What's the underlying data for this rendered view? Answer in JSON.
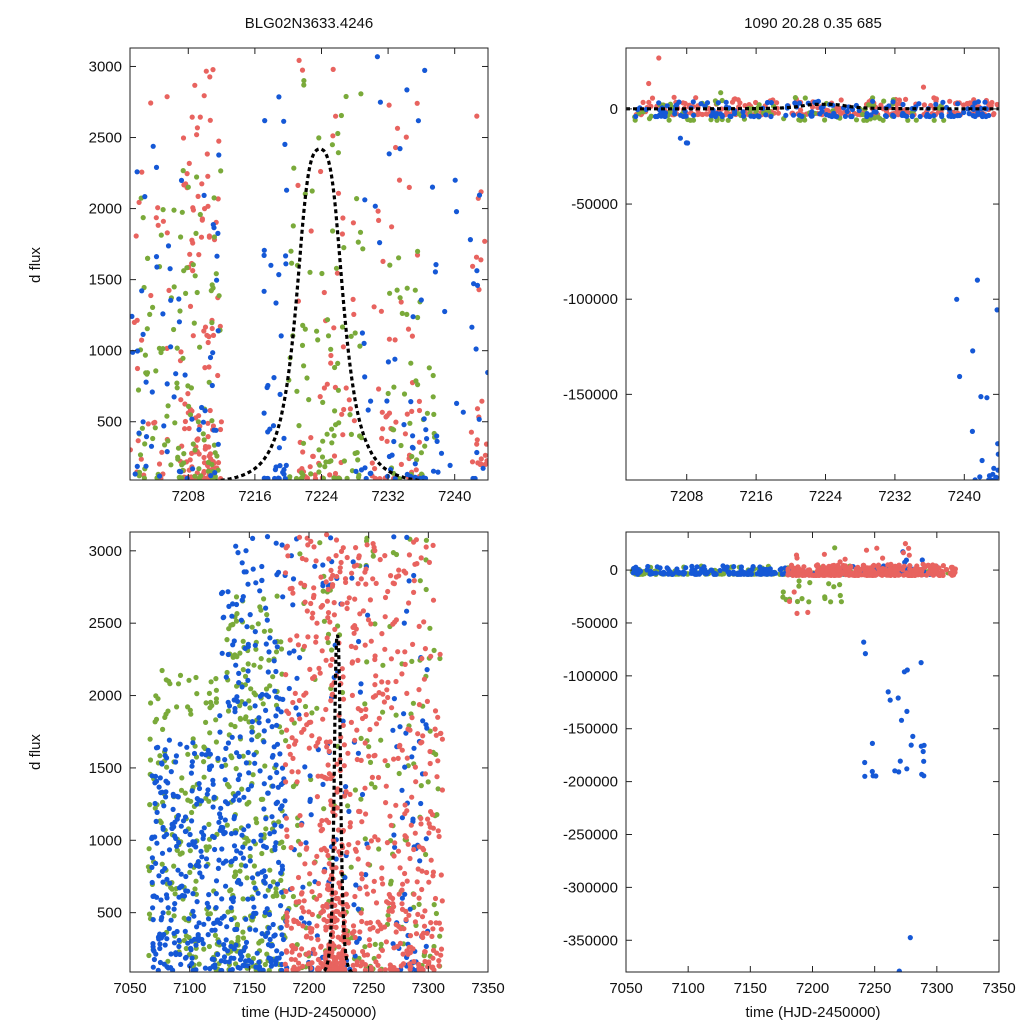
{
  "colors": {
    "red": "#e8635f",
    "green": "#7aaa3a",
    "blue": "#1558d6",
    "model": "#000000"
  },
  "chart_data": [
    {
      "id": "top-left",
      "type": "scatter",
      "title": "BLG02N3633.4246",
      "xlabel": "",
      "ylabel": "d flux",
      "xlim": [
        7201,
        7244
      ],
      "ylim": [
        90,
        3130
      ],
      "xticks": [
        7208,
        7216,
        7224,
        7232,
        7240
      ],
      "yticks": [
        500,
        1000,
        1500,
        2000,
        2500,
        3000
      ],
      "model": {
        "type": "peak",
        "t0": 7223.8,
        "peak": 2420,
        "width": 2.6,
        "baseline": 60
      },
      "series": [
        {
          "name": "red",
          "color": "#e8635f",
          "clusters": [
            [
              7207,
              7212,
              100,
              3000,
              0.6,
              130
            ],
            [
              7221,
              7228,
              100,
              3100,
              0.4,
              55
            ],
            [
              7230,
              7236,
              100,
              3000,
              0.5,
              55
            ],
            [
              7242,
              7244,
              200,
              2800,
              0.5,
              25
            ],
            [
              7201,
              7206,
              100,
              2800,
              0.4,
              30
            ]
          ]
        },
        {
          "name": "green",
          "color": "#7aaa3a",
          "clusters": [
            [
              7202,
              7212,
              100,
              2400,
              0.25,
              110
            ],
            [
              7220,
              7229,
              100,
              3100,
              0.5,
              90
            ],
            [
              7232,
              7238,
              100,
              1800,
              0.2,
              40
            ]
          ]
        },
        {
          "name": "blue",
          "color": "#1558d6",
          "clusters": [
            [
              7201,
              7212,
              100,
              2600,
              0.2,
              60
            ],
            [
              7217,
              7220,
              100,
              3000,
              0.5,
              40
            ],
            [
              7228,
              7238,
              100,
              3100,
              0.45,
              55
            ],
            [
              7238,
              7244,
              100,
              2700,
              0.4,
              20
            ]
          ]
        }
      ]
    },
    {
      "id": "top-right",
      "type": "scatter",
      "title": "1090  20.28  0.35  685",
      "xlabel": "",
      "ylabel": "",
      "xlim": [
        7201,
        7244
      ],
      "ylim": [
        -195000,
        32000
      ],
      "xticks": [
        7208,
        7216,
        7224,
        7232,
        7240
      ],
      "yticks": [
        0,
        -50000,
        -100000,
        -150000
      ],
      "model": {
        "type": "peak",
        "t0": 7223.8,
        "peak": 2420,
        "width": 2.6,
        "baseline": 60
      },
      "series": [
        {
          "name": "red",
          "color": "#e8635f",
          "clusters": [
            [
              7202,
              7244,
              -3000,
              6000,
              0.5,
              240
            ],
            [
              7203,
              7207,
              0,
              27000,
              0.8,
              8
            ],
            [
              7229,
              7240,
              0,
              14000,
              0.8,
              8
            ]
          ]
        },
        {
          "name": "green",
          "color": "#7aaa3a",
          "clusters": [
            [
              7202,
              7238,
              -6000,
              6000,
              0.5,
              90
            ],
            [
              7210,
              7213,
              0,
              10000,
              0.7,
              5
            ]
          ]
        },
        {
          "name": "blue",
          "color": "#1558d6",
          "clusters": [
            [
              7202,
              7243,
              -4000,
              4000,
              0.5,
              160
            ],
            [
              7239,
              7244,
              -195000,
              -30000,
              0.9,
              22
            ],
            [
              7240,
              7243,
              0,
              22000,
              0.8,
              5
            ],
            [
              7207,
              7210,
              -18000,
              -8000,
              0.8,
              3
            ]
          ]
        }
      ]
    },
    {
      "id": "bottom-left",
      "type": "scatter",
      "title": "",
      "xlabel": "time (HJD-2450000)",
      "ylabel": "d flux",
      "xlim": [
        7050,
        7350
      ],
      "ylim": [
        90,
        3130
      ],
      "xticks": [
        7050,
        7100,
        7150,
        7200,
        7250,
        7300,
        7350
      ],
      "yticks": [
        500,
        1000,
        1500,
        2000,
        2500,
        3000
      ],
      "model": {
        "type": "peak",
        "t0": 7223.8,
        "peak": 2420,
        "width": 2.6,
        "baseline": 60
      },
      "series": [
        {
          "name": "green",
          "color": "#7aaa3a",
          "clusters": [
            [
              7065,
              7125,
              100,
              2200,
              0.1,
              170
            ],
            [
              7130,
              7180,
              100,
              2700,
              0.15,
              220
            ],
            [
              7180,
              7310,
              100,
              3100,
              0.2,
              170
            ]
          ]
        },
        {
          "name": "blue",
          "color": "#1558d6",
          "clusters": [
            [
              7068,
              7125,
              100,
              1700,
              0.1,
              240
            ],
            [
              7125,
              7180,
              100,
              3100,
              0.15,
              300
            ],
            [
              7180,
              7250,
              100,
              3100,
              0.2,
              90
            ],
            [
              7270,
              7300,
              100,
              3100,
              0.3,
              60
            ]
          ]
        },
        {
          "name": "red",
          "color": "#e8635f",
          "clusters": [
            [
              7180,
              7215,
              100,
              3100,
              0.2,
              180
            ],
            [
              7214,
              7230,
              100,
              3130,
              0.6,
              220
            ],
            [
              7230,
              7300,
              100,
              3100,
              0.2,
              320
            ],
            [
              7300,
              7312,
              100,
              3100,
              0.3,
              50
            ]
          ]
        }
      ]
    },
    {
      "id": "bottom-right",
      "type": "scatter",
      "title": "",
      "xlabel": "time (HJD-2450000)",
      "ylabel": "",
      "xlim": [
        7050,
        7350
      ],
      "ylim": [
        -380000,
        36000
      ],
      "xticks": [
        7050,
        7100,
        7150,
        7200,
        7250,
        7300,
        7350
      ],
      "yticks": [
        0,
        -50000,
        -100000,
        -150000,
        -200000,
        -250000,
        -300000,
        -350000
      ],
      "model": null,
      "series": [
        {
          "name": "green",
          "color": "#7aaa3a",
          "clusters": [
            [
              7055,
              7310,
              -4000,
              4000,
              0.5,
              180
            ],
            [
              7160,
              7230,
              -30000,
              26000,
              0.5,
              20
            ]
          ]
        },
        {
          "name": "blue",
          "color": "#1558d6",
          "clusters": [
            [
              7055,
              7300,
              -4000,
              4000,
              0.5,
              260
            ],
            [
              7240,
              7290,
              -195000,
              -20000,
              0.7,
              28
            ],
            [
              7270,
              7290,
              0,
              36000,
              0.5,
              6
            ],
            [
              7265,
              7285,
              -380000,
              -250000,
              0.9,
              3
            ]
          ]
        },
        {
          "name": "red",
          "color": "#e8635f",
          "clusters": [
            [
              7180,
              7315,
              -5000,
              5000,
              0.5,
              320
            ],
            [
              7185,
              7290,
              0,
              30000,
              0.6,
              25
            ],
            [
              7180,
              7200,
              -42000,
              -20000,
              0.7,
              4
            ]
          ]
        }
      ]
    }
  ]
}
